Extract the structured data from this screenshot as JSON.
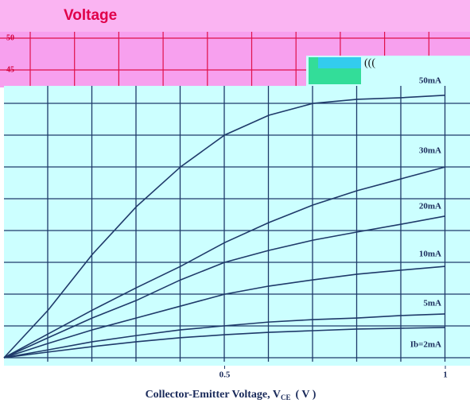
{
  "overlay": {
    "title": "Voltage",
    "labels": [
      "50",
      "45"
    ]
  },
  "chart_data": {
    "type": "line",
    "x": [
      0,
      0.1,
      0.2,
      0.3,
      0.4,
      0.5,
      0.6,
      0.7,
      0.8,
      0.9,
      1
    ],
    "xlim": [
      0,
      1
    ],
    "xticks": [
      0.5,
      1
    ],
    "ylim": [
      0,
      100
    ],
    "x_label": [
      "Collector-Emitter Voltage, V",
      "CE",
      "( V )"
    ],
    "series": [
      {
        "name": "50mA",
        "color": "#1f3a6a",
        "values": [
          0,
          17.6,
          38.2,
          55.9,
          70.6,
          82.4,
          89.7,
          94.1,
          95.6,
          96.2,
          97.1
        ]
      },
      {
        "name": "30mA",
        "color": "#1f3a6a",
        "values": [
          0,
          8.8,
          17.6,
          25.9,
          33.8,
          42.6,
          50,
          56.5,
          61.8,
          66.2,
          70.6
        ]
      },
      {
        "name": "20mA",
        "color": "#1f3a6a",
        "values": [
          0,
          7.4,
          14.7,
          21.2,
          28.8,
          35.3,
          39.7,
          43.5,
          46.5,
          49.4,
          52.4
        ]
      },
      {
        "name": "10mA",
        "color": "#1f3a6a",
        "values": [
          0,
          5.3,
          10.3,
          14.7,
          19.1,
          23.5,
          26.5,
          28.8,
          30.9,
          32.4,
          33.8
        ]
      },
      {
        "name": "5mA",
        "color": "#1f3a6a",
        "values": [
          0,
          2.9,
          5.9,
          8.2,
          10.3,
          11.8,
          13.2,
          14.1,
          14.7,
          15.6,
          16.2
        ]
      },
      {
        "name": "Ib=2mA",
        "color": "#1f3a6a",
        "values": [
          0,
          2.1,
          4.1,
          5.9,
          7.4,
          8.5,
          9.4,
          10,
          10.6,
          10.9,
          11.2
        ]
      }
    ]
  }
}
